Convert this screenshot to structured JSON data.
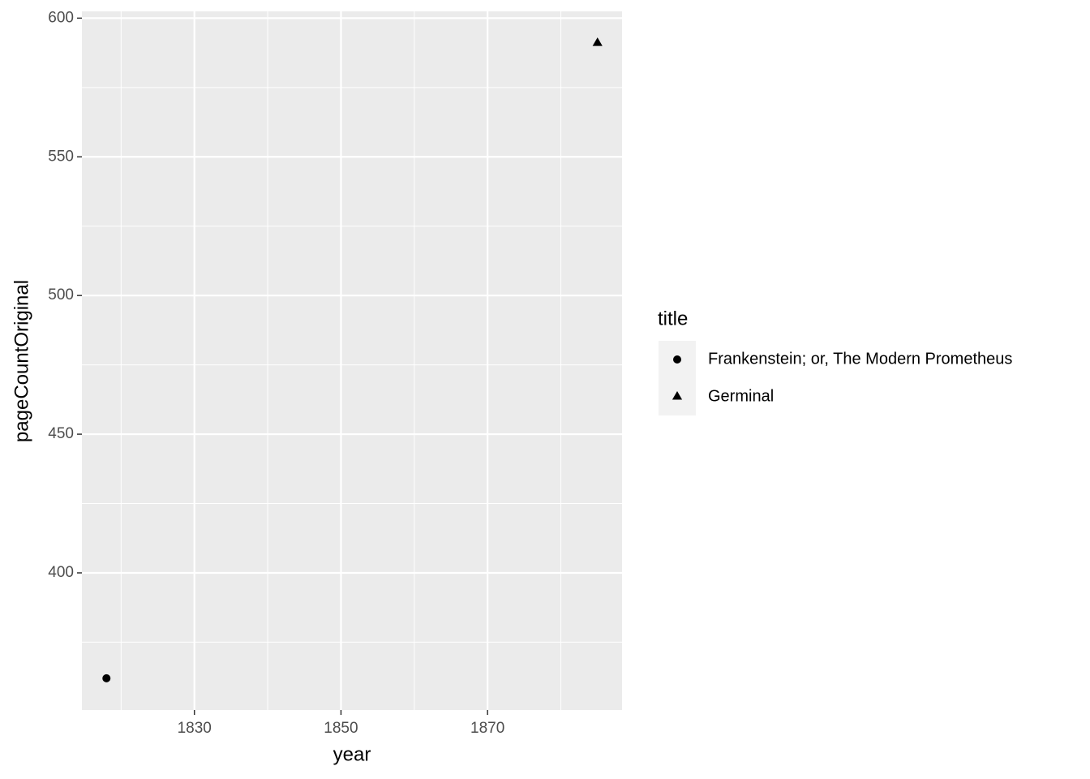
{
  "chart_data": {
    "type": "scatter",
    "x_label": "year",
    "y_label": "pageCountOriginal",
    "legend_title": "title",
    "legend_position": "right",
    "series": [
      {
        "name": "Frankenstein; or, The Modern Prometheus",
        "shape": "circle",
        "color": "#000000",
        "x": [
          1818
        ],
        "values": [
          362
        ]
      },
      {
        "name": "Germinal",
        "shape": "triangle",
        "color": "#000000",
        "x": [
          1885
        ],
        "values": [
          591
        ]
      }
    ],
    "xlim": [
      1814.65,
      1888.35
    ],
    "ylim": [
      350.55,
      602.45
    ],
    "xticks": [
      1830,
      1850,
      1870
    ],
    "yticks": [
      400,
      450,
      500,
      550,
      600
    ],
    "xminor": [
      1820,
      1840,
      1860,
      1880
    ],
    "yminor": [
      375,
      425,
      475,
      525,
      575
    ],
    "grid": true,
    "panel_color": "#ebebeb"
  }
}
